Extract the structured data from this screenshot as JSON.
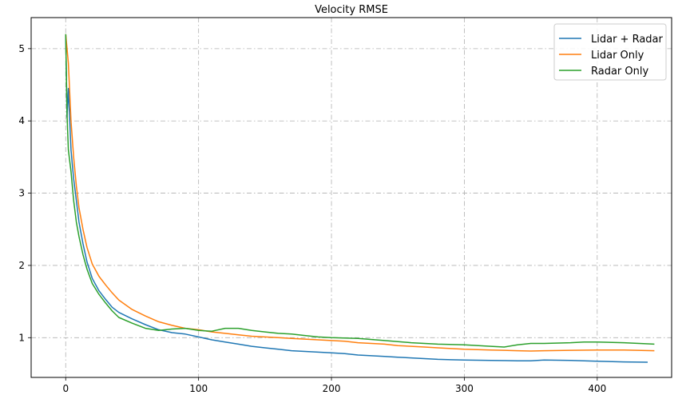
{
  "chart_data": {
    "type": "line",
    "title": "Velocity RMSE",
    "xlabel": "",
    "ylabel": "",
    "xlim": [
      -26,
      456
    ],
    "ylim": [
      0.45,
      5.43
    ],
    "xticks": [
      0,
      100,
      200,
      300,
      400
    ],
    "yticks": [
      1,
      2,
      3,
      4,
      5
    ],
    "grid": true,
    "grid_style": "dash-dot",
    "legend_position": "top-right",
    "series": [
      {
        "name": "Lidar + Radar",
        "color": "#1f77b4",
        "points": [
          [
            0,
            5.2
          ],
          [
            1,
            4.05
          ],
          [
            2,
            4.45
          ],
          [
            3,
            4.0
          ],
          [
            4,
            3.6
          ],
          [
            6,
            3.2
          ],
          [
            8,
            2.9
          ],
          [
            10,
            2.6
          ],
          [
            13,
            2.3
          ],
          [
            16,
            2.05
          ],
          [
            20,
            1.82
          ],
          [
            25,
            1.65
          ],
          [
            30,
            1.53
          ],
          [
            35,
            1.42
          ],
          [
            40,
            1.35
          ],
          [
            50,
            1.26
          ],
          [
            60,
            1.18
          ],
          [
            70,
            1.11
          ],
          [
            80,
            1.07
          ],
          [
            90,
            1.05
          ],
          [
            100,
            1.01
          ],
          [
            110,
            0.97
          ],
          [
            120,
            0.94
          ],
          [
            130,
            0.91
          ],
          [
            140,
            0.88
          ],
          [
            150,
            0.86
          ],
          [
            160,
            0.84
          ],
          [
            170,
            0.82
          ],
          [
            180,
            0.81
          ],
          [
            190,
            0.8
          ],
          [
            200,
            0.79
          ],
          [
            210,
            0.78
          ],
          [
            220,
            0.76
          ],
          [
            230,
            0.75
          ],
          [
            240,
            0.74
          ],
          [
            250,
            0.73
          ],
          [
            260,
            0.72
          ],
          [
            270,
            0.71
          ],
          [
            280,
            0.7
          ],
          [
            290,
            0.695
          ],
          [
            300,
            0.69
          ],
          [
            320,
            0.685
          ],
          [
            340,
            0.68
          ],
          [
            350,
            0.68
          ],
          [
            360,
            0.69
          ],
          [
            380,
            0.685
          ],
          [
            400,
            0.675
          ],
          [
            420,
            0.665
          ],
          [
            438,
            0.66
          ]
        ]
      },
      {
        "name": "Lidar Only",
        "color": "#ff7f0e",
        "points": [
          [
            0,
            5.2
          ],
          [
            2,
            4.8
          ],
          [
            4,
            4.0
          ],
          [
            6,
            3.5
          ],
          [
            8,
            3.1
          ],
          [
            10,
            2.8
          ],
          [
            13,
            2.5
          ],
          [
            16,
            2.25
          ],
          [
            20,
            2.02
          ],
          [
            25,
            1.85
          ],
          [
            30,
            1.73
          ],
          [
            35,
            1.62
          ],
          [
            40,
            1.52
          ],
          [
            50,
            1.39
          ],
          [
            60,
            1.3
          ],
          [
            70,
            1.22
          ],
          [
            80,
            1.17
          ],
          [
            90,
            1.13
          ],
          [
            100,
            1.11
          ],
          [
            110,
            1.08
          ],
          [
            120,
            1.06
          ],
          [
            130,
            1.04
          ],
          [
            140,
            1.02
          ],
          [
            150,
            1.01
          ],
          [
            160,
            1.0
          ],
          [
            170,
            0.99
          ],
          [
            180,
            0.98
          ],
          [
            190,
            0.97
          ],
          [
            200,
            0.96
          ],
          [
            210,
            0.95
          ],
          [
            220,
            0.93
          ],
          [
            230,
            0.92
          ],
          [
            240,
            0.91
          ],
          [
            250,
            0.89
          ],
          [
            260,
            0.88
          ],
          [
            270,
            0.87
          ],
          [
            280,
            0.86
          ],
          [
            290,
            0.85
          ],
          [
            300,
            0.84
          ],
          [
            320,
            0.83
          ],
          [
            340,
            0.82
          ],
          [
            350,
            0.815
          ],
          [
            360,
            0.82
          ],
          [
            380,
            0.825
          ],
          [
            400,
            0.83
          ],
          [
            420,
            0.83
          ],
          [
            443,
            0.82
          ]
        ]
      },
      {
        "name": "Radar Only",
        "color": "#2ca02c",
        "points": [
          [
            0,
            5.2
          ],
          [
            1,
            4.1
          ],
          [
            2,
            3.6
          ],
          [
            4,
            3.3
          ],
          [
            6,
            2.9
          ],
          [
            8,
            2.6
          ],
          [
            10,
            2.4
          ],
          [
            13,
            2.15
          ],
          [
            16,
            1.95
          ],
          [
            20,
            1.75
          ],
          [
            25,
            1.6
          ],
          [
            30,
            1.48
          ],
          [
            35,
            1.37
          ],
          [
            40,
            1.28
          ],
          [
            50,
            1.2
          ],
          [
            60,
            1.13
          ],
          [
            70,
            1.1
          ],
          [
            80,
            1.12
          ],
          [
            90,
            1.13
          ],
          [
            100,
            1.1
          ],
          [
            110,
            1.09
          ],
          [
            120,
            1.13
          ],
          [
            130,
            1.13
          ],
          [
            140,
            1.1
          ],
          [
            150,
            1.08
          ],
          [
            160,
            1.06
          ],
          [
            170,
            1.05
          ],
          [
            180,
            1.03
          ],
          [
            190,
            1.01
          ],
          [
            200,
            1.0
          ],
          [
            220,
            0.99
          ],
          [
            240,
            0.96
          ],
          [
            260,
            0.93
          ],
          [
            280,
            0.91
          ],
          [
            300,
            0.9
          ],
          [
            320,
            0.88
          ],
          [
            330,
            0.87
          ],
          [
            340,
            0.9
          ],
          [
            350,
            0.92
          ],
          [
            360,
            0.92
          ],
          [
            380,
            0.93
          ],
          [
            390,
            0.94
          ],
          [
            400,
            0.94
          ],
          [
            420,
            0.93
          ],
          [
            443,
            0.91
          ]
        ]
      }
    ]
  }
}
